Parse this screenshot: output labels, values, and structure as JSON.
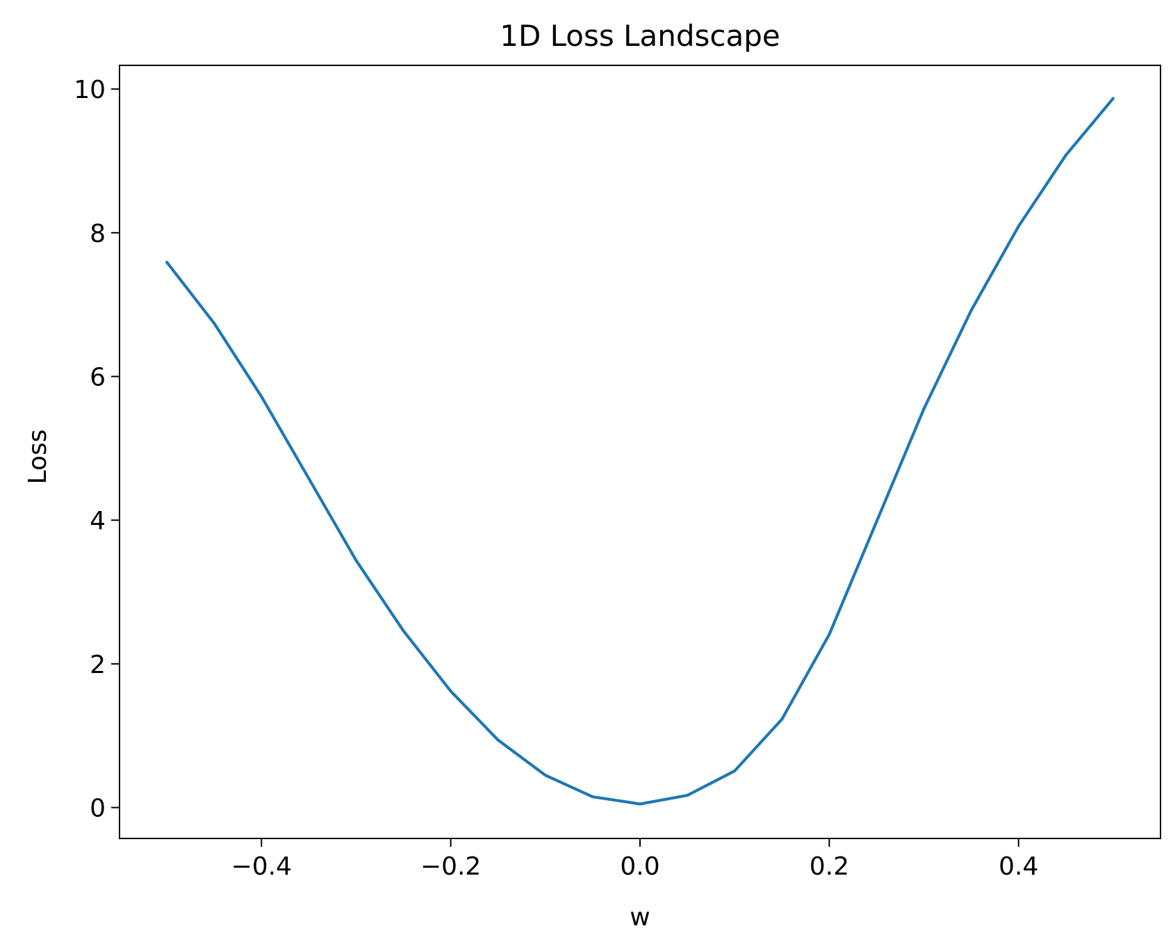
{
  "chart_data": {
    "type": "line",
    "title": "1D Loss Landscape",
    "xlabel": "w",
    "ylabel": "Loss",
    "xlim": [
      -0.55,
      0.55
    ],
    "ylim": [
      -0.43,
      10.33
    ],
    "xticks": [
      -0.4,
      -0.2,
      0.0,
      0.2,
      0.4
    ],
    "xtick_labels": [
      "−0.4",
      "−0.2",
      "0.0",
      "0.2",
      "0.4"
    ],
    "yticks": [
      0,
      2,
      4,
      6,
      8,
      10
    ],
    "ytick_labels": [
      "0",
      "2",
      "4",
      "6",
      "8",
      "10"
    ],
    "grid": false,
    "series": [
      {
        "color": "#1f77b4",
        "x": [
          -0.5,
          -0.45,
          -0.4,
          -0.35,
          -0.3,
          -0.25,
          -0.2,
          -0.15,
          -0.1,
          -0.05,
          0.0,
          0.05,
          0.1,
          0.15,
          0.2,
          0.25,
          0.3,
          0.35,
          0.4,
          0.45,
          0.5
        ],
        "y": [
          7.59,
          6.74,
          5.72,
          4.58,
          3.44,
          2.46,
          1.62,
          0.94,
          0.45,
          0.15,
          0.05,
          0.17,
          0.51,
          1.23,
          2.41,
          3.98,
          5.55,
          6.92,
          8.09,
          9.08,
          9.87
        ]
      }
    ]
  }
}
